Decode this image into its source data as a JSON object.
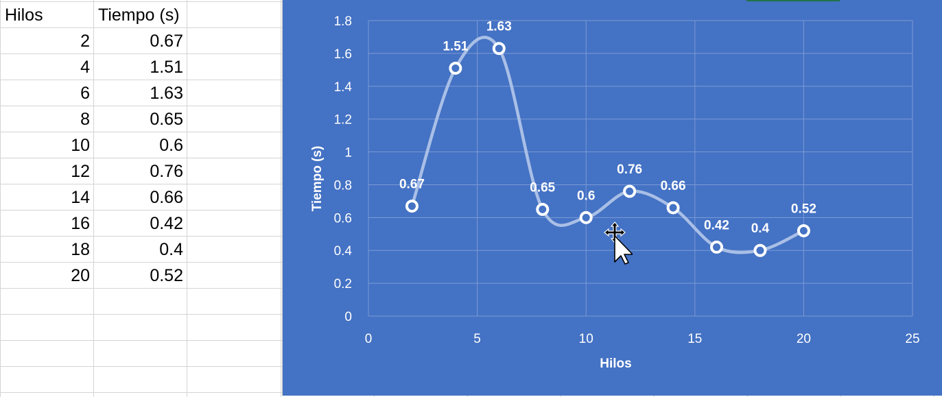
{
  "sheet": {
    "headers": [
      "Hilos",
      "Tiempo (s)"
    ],
    "rows": [
      [
        "2",
        "0.67"
      ],
      [
        "4",
        "1.51"
      ],
      [
        "6",
        "1.63"
      ],
      [
        "8",
        "0.65"
      ],
      [
        "10",
        "0.6"
      ],
      [
        "12",
        "0.76"
      ],
      [
        "14",
        "0.66"
      ],
      [
        "16",
        "0.42"
      ],
      [
        "18",
        "0.4"
      ],
      [
        "20",
        "0.52"
      ]
    ]
  },
  "chart_data": {
    "type": "scatter",
    "style": "smooth-line-with-markers",
    "title": "",
    "xlabel": "Hilos",
    "ylabel": "Tiempo (s)",
    "xlim": [
      0,
      25
    ],
    "ylim": [
      0,
      1.8
    ],
    "x_ticks": [
      "0",
      "5",
      "10",
      "15",
      "20",
      "25"
    ],
    "y_ticks": [
      "0",
      "0.2",
      "0.4",
      "0.6",
      "0.8",
      "1",
      "1.2",
      "1.4",
      "1.6",
      "1.8"
    ],
    "grid": true,
    "legend": "none",
    "series": [
      {
        "x": [
          2,
          4,
          6,
          8,
          10,
          12,
          14,
          16,
          18,
          20
        ],
        "y": [
          0.67,
          1.51,
          1.63,
          0.65,
          0.6,
          0.76,
          0.66,
          0.42,
          0.4,
          0.52
        ],
        "labels": [
          "0.67",
          "1.51",
          "1.63",
          "0.65",
          "0.6",
          "0.76",
          "0.66",
          "0.42",
          "0.4",
          "0.52"
        ]
      }
    ],
    "colors": {
      "background": "#4472c4",
      "grid": "#7c9bd6",
      "line": "#a9bfe6",
      "marker_fill": "#4472c4",
      "marker_stroke": "#ffffff",
      "text": "#ffffff"
    }
  },
  "cursor": {
    "icon": "move-arrow-cursor-icon"
  }
}
